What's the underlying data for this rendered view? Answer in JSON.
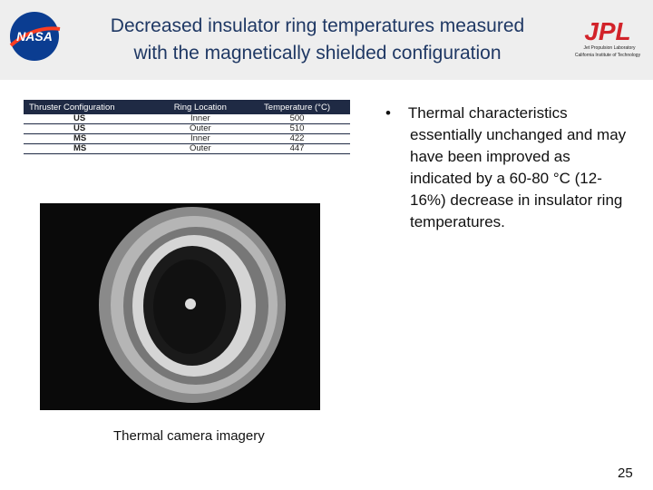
{
  "header": {
    "title_lines": [
      "Decreased insulator ring temperatures measured",
      "with the magnetically shielded configuration"
    ],
    "left_logo": "NASA",
    "right_logo": {
      "mark": "JPL",
      "lines": [
        "Jet Propulsion Laboratory",
        "California Institute of Technology"
      ]
    }
  },
  "table": {
    "columns": [
      "Thruster Configuration",
      "Ring Location",
      "Temperature (°C)"
    ],
    "rows": [
      [
        "US",
        "Inner",
        "500"
      ],
      [
        "US",
        "Outer",
        "510"
      ],
      [
        "MS",
        "Inner",
        "422"
      ],
      [
        "MS",
        "Outer",
        "447"
      ]
    ]
  },
  "bullets": [
    "Thermal characteristics essentially unchanged and may have been improved as indicated by a 60-80 °C (12-16%) decrease in insulator ring temperatures."
  ],
  "caption": "Thermal camera imagery",
  "page_number": "25"
}
